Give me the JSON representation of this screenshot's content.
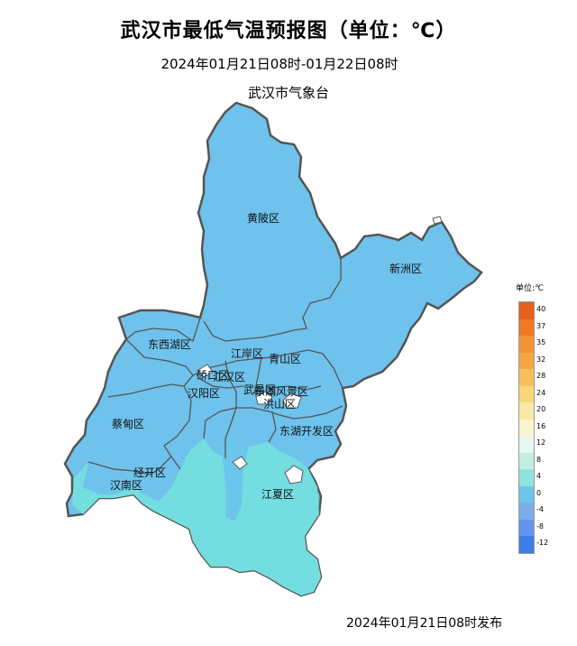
{
  "title": "武汉市最低气温预报图（单位：℃）",
  "subtitle": "2024年01月21日08时-01月22日08时",
  "agency": "武汉市气象台",
  "footer": "2024年01月21日08时发布",
  "districts": {
    "huangpi": "黄陂区",
    "xinzhou": "新洲区",
    "dongxihu": "东西湖区",
    "jiangan": "江岸区",
    "qiaokou": "硚口区",
    "jianghan": "江汉区",
    "qingshan": "青山区",
    "hanyang": "汉阳区",
    "wuchang": "武昌区",
    "fengjing": "东湖风景区",
    "hongshan": "洪山区",
    "caidian": "蔡甸区",
    "donghu_dev": "东湖开发区",
    "jingkai": "经开区",
    "hannan": "汉南区",
    "jiangxia": "江夏区"
  },
  "legend": {
    "title": "单位:℃",
    "ticks": [
      "40",
      "37",
      "35",
      "32",
      "28",
      "24",
      "20",
      "16",
      "12",
      "8",
      "4",
      "0",
      "-4",
      "-8",
      "-12"
    ],
    "colors": [
      "#e8601c",
      "#ef7a22",
      "#f29434",
      "#f4a646",
      "#f6c15c",
      "#f7d77a",
      "#f8e9a8",
      "#f9f5cf",
      "#e6f7ee",
      "#c3efe1",
      "#8fe3dc",
      "#6cc6ec",
      "#7dade9",
      "#6295ec",
      "#3f7fe3"
    ]
  },
  "temperature_fill": {
    "north_color": "#6ec2ec",
    "south_color": "#74dde0"
  }
}
